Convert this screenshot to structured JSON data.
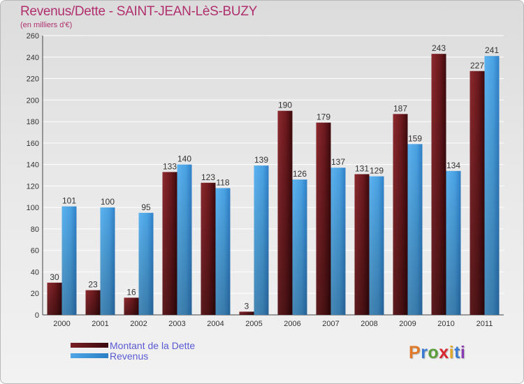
{
  "title": "Revenus/Dette - SAINT-JEAN-LèS-BUZY",
  "subtitle": "(en milliers d'€)",
  "legend": {
    "debt_label": "Montant de la Dette",
    "revenue_label": "Revenus"
  },
  "logo": {
    "text": "Proxiti",
    "colors": [
      "#e07a2a",
      "#3a7ad0",
      "#5aa03a",
      "#d7282f",
      "#e0a82a",
      "#3a7ad0",
      "#8a3ab0"
    ]
  },
  "colors": {
    "debt": "#7a1f24",
    "revenue": "#4ea6e6",
    "title": "#b0306e",
    "axis": "#333333",
    "grid": "#ffffff"
  },
  "chart_data": {
    "type": "bar",
    "title": "Revenus/Dette - SAINT-JEAN-LèS-BUZY",
    "subtitle": "(en milliers d'€)",
    "categories": [
      "2000",
      "2001",
      "2002",
      "2003",
      "2004",
      "2005",
      "2006",
      "2007",
      "2008",
      "2009",
      "2010",
      "2011"
    ],
    "series": [
      {
        "name": "Montant de la Dette",
        "values": [
          30,
          23,
          16,
          133,
          123,
          3,
          190,
          179,
          131,
          187,
          243,
          227
        ]
      },
      {
        "name": "Revenus",
        "values": [
          101,
          100,
          95,
          140,
          118,
          139,
          126,
          137,
          129,
          159,
          134,
          241
        ]
      }
    ],
    "ylim": [
      0,
      260
    ],
    "yticks": [
      0,
      20,
      40,
      60,
      80,
      100,
      120,
      140,
      160,
      180,
      200,
      220,
      240,
      260
    ],
    "grid": true,
    "legend_position": "bottom-left"
  }
}
